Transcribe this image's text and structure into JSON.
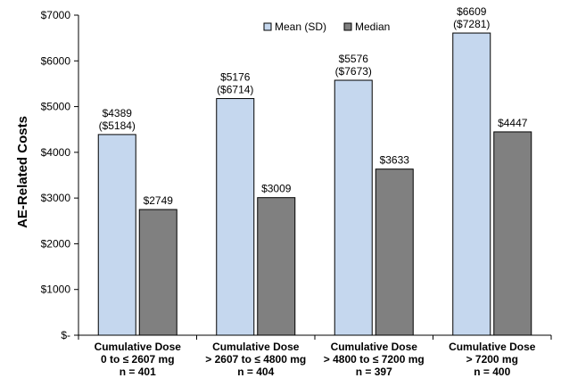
{
  "chart_data": {
    "type": "bar",
    "ylabel": "AE-Related Costs",
    "ylim": [
      0,
      7000
    ],
    "ytick_values": [
      0,
      1000,
      2000,
      3000,
      4000,
      5000,
      6000,
      7000
    ],
    "ytick_labels": [
      "$-",
      "$1000",
      "$2000",
      "$3000",
      "$4000",
      "$5000",
      "$6000",
      "$7000"
    ],
    "grid": false,
    "legend_position": "top-right",
    "categories": [
      {
        "lines": [
          "Cumulative Dose",
          "0 to ≤ 2607 mg",
          "n = 401"
        ]
      },
      {
        "lines": [
          "Cumulative Dose",
          "> 2607 to ≤ 4800 mg",
          "n = 404"
        ]
      },
      {
        "lines": [
          "Cumulative Dose",
          "> 4800 to ≤ 7200 mg",
          "n = 397"
        ]
      },
      {
        "lines": [
          "Cumulative Dose",
          "> 7200 mg",
          "n = 400"
        ]
      }
    ],
    "series": [
      {
        "name": "Mean (SD)",
        "color": "#c5d7ee",
        "values": [
          4389,
          5176,
          5576,
          6609
        ],
        "labels": [
          [
            "$4389",
            "($5184)"
          ],
          [
            "$5176",
            "($6714)"
          ],
          [
            "$5576",
            "($7673)"
          ],
          [
            "$6609",
            "($7281)"
          ]
        ]
      },
      {
        "name": "Median",
        "color": "#808080",
        "values": [
          2749,
          3009,
          3633,
          4447
        ],
        "labels": [
          [
            "$2749"
          ],
          [
            "$3009"
          ],
          [
            "$3633"
          ],
          [
            "$4447"
          ]
        ]
      }
    ]
  }
}
